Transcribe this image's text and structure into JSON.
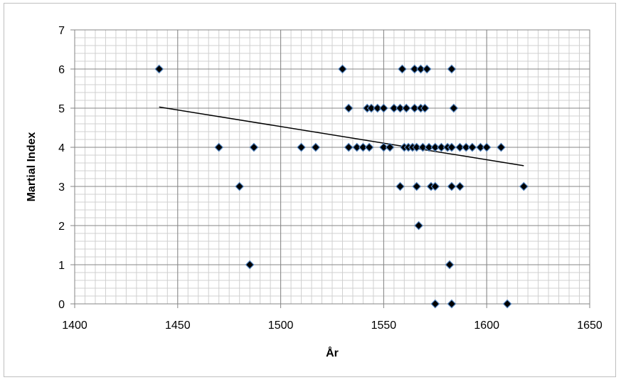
{
  "chart_data": {
    "type": "scatter",
    "title": "",
    "xlabel": "År",
    "ylabel": "Martial Index",
    "xlim": [
      1400,
      1650
    ],
    "ylim": [
      0,
      7
    ],
    "x_ticks": [
      1400,
      1450,
      1500,
      1550,
      1600,
      1650
    ],
    "y_ticks": [
      0,
      1,
      2,
      3,
      4,
      5,
      6,
      7
    ],
    "grid": "major and minor",
    "marker": "diamond",
    "marker_color": "#000000",
    "marker_edge_color": "#4f81bd",
    "trendline": {
      "type": "linear",
      "x": [
        1441,
        1618
      ],
      "y": [
        5.03,
        3.53
      ],
      "color": "#000000"
    },
    "points": [
      {
        "x": 1441,
        "y": 6
      },
      {
        "x": 1530,
        "y": 6
      },
      {
        "x": 1559,
        "y": 6
      },
      {
        "x": 1565,
        "y": 6
      },
      {
        "x": 1568,
        "y": 6
      },
      {
        "x": 1571,
        "y": 6
      },
      {
        "x": 1583,
        "y": 6
      },
      {
        "x": 1533,
        "y": 5
      },
      {
        "x": 1542,
        "y": 5
      },
      {
        "x": 1544,
        "y": 5
      },
      {
        "x": 1547,
        "y": 5
      },
      {
        "x": 1550,
        "y": 5
      },
      {
        "x": 1555,
        "y": 5
      },
      {
        "x": 1558,
        "y": 5
      },
      {
        "x": 1561,
        "y": 5
      },
      {
        "x": 1565,
        "y": 5
      },
      {
        "x": 1568,
        "y": 5
      },
      {
        "x": 1570,
        "y": 5
      },
      {
        "x": 1584,
        "y": 5
      },
      {
        "x": 1470,
        "y": 4
      },
      {
        "x": 1487,
        "y": 4
      },
      {
        "x": 1510,
        "y": 4
      },
      {
        "x": 1517,
        "y": 4
      },
      {
        "x": 1533,
        "y": 4
      },
      {
        "x": 1537,
        "y": 4
      },
      {
        "x": 1540,
        "y": 4
      },
      {
        "x": 1543,
        "y": 4
      },
      {
        "x": 1550,
        "y": 4
      },
      {
        "x": 1553,
        "y": 4
      },
      {
        "x": 1560,
        "y": 4
      },
      {
        "x": 1562,
        "y": 4
      },
      {
        "x": 1564,
        "y": 4
      },
      {
        "x": 1566,
        "y": 4
      },
      {
        "x": 1569,
        "y": 4
      },
      {
        "x": 1572,
        "y": 4
      },
      {
        "x": 1575,
        "y": 4
      },
      {
        "x": 1578,
        "y": 4
      },
      {
        "x": 1581,
        "y": 4
      },
      {
        "x": 1583,
        "y": 4
      },
      {
        "x": 1587,
        "y": 4
      },
      {
        "x": 1590,
        "y": 4
      },
      {
        "x": 1593,
        "y": 4
      },
      {
        "x": 1597,
        "y": 4
      },
      {
        "x": 1600,
        "y": 4
      },
      {
        "x": 1607,
        "y": 4
      },
      {
        "x": 1480,
        "y": 3
      },
      {
        "x": 1558,
        "y": 3
      },
      {
        "x": 1566,
        "y": 3
      },
      {
        "x": 1573,
        "y": 3
      },
      {
        "x": 1575,
        "y": 3
      },
      {
        "x": 1583,
        "y": 3
      },
      {
        "x": 1587,
        "y": 3
      },
      {
        "x": 1618,
        "y": 3
      },
      {
        "x": 1567,
        "y": 2
      },
      {
        "x": 1485,
        "y": 1
      },
      {
        "x": 1582,
        "y": 1
      },
      {
        "x": 1575,
        "y": 0
      },
      {
        "x": 1583,
        "y": 0
      },
      {
        "x": 1610,
        "y": 0
      }
    ]
  }
}
